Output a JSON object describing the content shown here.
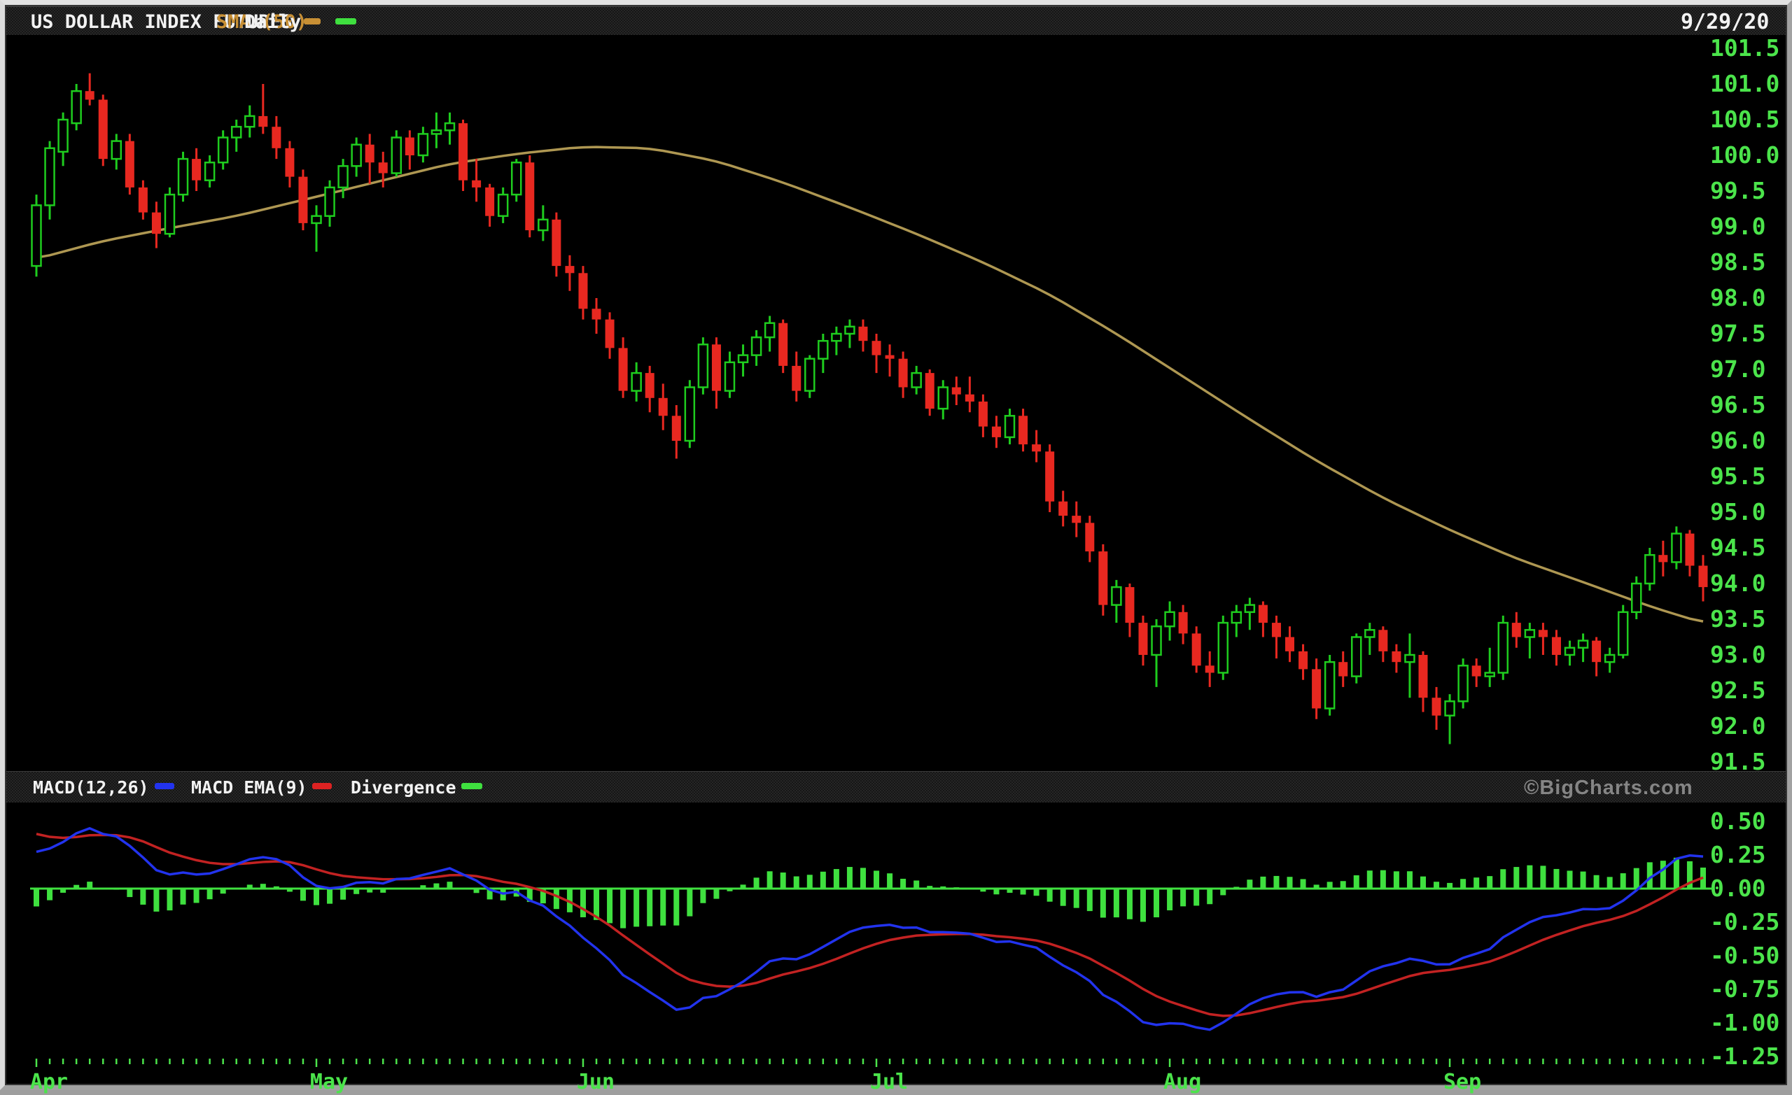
{
  "window": {
    "title": "US DOLLAR INDEX FUTURES",
    "overlay_indicator_label": "SMA (50)",
    "period_label": "Daily",
    "date": "9/29/20"
  },
  "watermark": "©BigCharts.com",
  "macd_legend": {
    "macd_label": "MACD(12,26)",
    "ema_label": "MACD EMA(9)",
    "divergence_label": "Divergence"
  },
  "colors": {
    "up": "#1ecc1e",
    "down": "#e82820",
    "ma": "#ae9752",
    "macd_line": "#2233ee",
    "signal_line": "#c22222",
    "histogram": "#3fe03f",
    "axis_text": "#4be44b",
    "title_text": "#f2f2f2",
    "overlay_text": "#c89035",
    "watermark_text": "#858585"
  },
  "chart_data": {
    "type": "candlestick",
    "title": "US DOLLAR INDEX FUTURES Daily with SMA(50) overlay and MACD(12,26,9) panel",
    "ohlc_format": [
      "open",
      "high",
      "low",
      "close"
    ],
    "y_axis": {
      "side": "right",
      "min": 91.5,
      "max": 101.5,
      "ticks": [
        "101.5",
        "101.0",
        "100.5",
        "100.0",
        "99.5",
        "99.0",
        "98.5",
        "98.0",
        "97.5",
        "97.0",
        "96.5",
        "96.0",
        "95.5",
        "95.0",
        "94.5",
        "94.0",
        "93.5",
        "93.0",
        "92.5",
        "92.0",
        "91.5"
      ]
    },
    "macd_axis": {
      "side": "right",
      "min": -1.25,
      "max": 0.5,
      "ticks": [
        "0.50",
        "0.25",
        "0.00",
        "-0.25",
        "-0.50",
        "-0.75",
        "-1.00",
        "-1.25"
      ]
    },
    "x_axis": {
      "months": [
        "Apr",
        "May",
        "Jun",
        "Jul",
        "Aug",
        "Sep"
      ],
      "month_start_index": [
        0,
        21,
        41,
        63,
        85,
        106
      ]
    },
    "layout": {
      "grid": false,
      "background": "black",
      "legend_position": "top-left of each pane"
    },
    "candles": [
      [
        98.45,
        99.45,
        98.3,
        99.3
      ],
      [
        99.3,
        100.2,
        99.1,
        100.1
      ],
      [
        100.05,
        100.6,
        99.85,
        100.5
      ],
      [
        100.45,
        101.0,
        100.35,
        100.9
      ],
      [
        100.9,
        101.15,
        100.7,
        100.78
      ],
      [
        100.78,
        100.85,
        99.85,
        99.95
      ],
      [
        99.95,
        100.3,
        99.8,
        100.2
      ],
      [
        100.2,
        100.3,
        99.45,
        99.55
      ],
      [
        99.55,
        99.65,
        99.1,
        99.2
      ],
      [
        99.2,
        99.35,
        98.7,
        98.9
      ],
      [
        98.9,
        99.55,
        98.85,
        99.45
      ],
      [
        99.45,
        100.05,
        99.35,
        99.95
      ],
      [
        99.95,
        100.1,
        99.5,
        99.65
      ],
      [
        99.65,
        100.0,
        99.55,
        99.9
      ],
      [
        99.9,
        100.35,
        99.8,
        100.25
      ],
      [
        100.25,
        100.5,
        100.05,
        100.4
      ],
      [
        100.4,
        100.7,
        100.25,
        100.55
      ],
      [
        100.55,
        101.0,
        100.3,
        100.4
      ],
      [
        100.4,
        100.55,
        99.95,
        100.1
      ],
      [
        100.1,
        100.2,
        99.55,
        99.7
      ],
      [
        99.7,
        99.8,
        98.95,
        99.05
      ],
      [
        99.05,
        99.3,
        98.65,
        99.15
      ],
      [
        99.15,
        99.65,
        99.0,
        99.55
      ],
      [
        99.55,
        99.95,
        99.4,
        99.85
      ],
      [
        99.85,
        100.25,
        99.7,
        100.15
      ],
      [
        100.15,
        100.3,
        99.6,
        99.9
      ],
      [
        99.9,
        100.05,
        99.55,
        99.75
      ],
      [
        99.75,
        100.35,
        99.7,
        100.25
      ],
      [
        100.25,
        100.35,
        99.8,
        100.0
      ],
      [
        100.0,
        100.4,
        99.9,
        100.3
      ],
      [
        100.3,
        100.6,
        100.1,
        100.35
      ],
      [
        100.35,
        100.6,
        100.15,
        100.45
      ],
      [
        100.45,
        100.5,
        99.5,
        99.65
      ],
      [
        99.65,
        99.95,
        99.35,
        99.55
      ],
      [
        99.55,
        99.6,
        99.0,
        99.15
      ],
      [
        99.15,
        99.55,
        99.05,
        99.45
      ],
      [
        99.45,
        99.95,
        99.35,
        99.9
      ],
      [
        99.9,
        100.0,
        98.85,
        98.95
      ],
      [
        98.95,
        99.3,
        98.8,
        99.1
      ],
      [
        99.1,
        99.2,
        98.3,
        98.45
      ],
      [
        98.45,
        98.6,
        98.1,
        98.35
      ],
      [
        98.35,
        98.45,
        97.7,
        97.85
      ],
      [
        97.85,
        98.0,
        97.5,
        97.7
      ],
      [
        97.7,
        97.8,
        97.15,
        97.3
      ],
      [
        97.3,
        97.45,
        96.6,
        96.7
      ],
      [
        96.7,
        97.1,
        96.55,
        96.95
      ],
      [
        96.95,
        97.05,
        96.4,
        96.6
      ],
      [
        96.6,
        96.8,
        96.15,
        96.35
      ],
      [
        96.35,
        96.5,
        95.75,
        96.0
      ],
      [
        96.0,
        96.85,
        95.9,
        96.75
      ],
      [
        96.75,
        97.45,
        96.65,
        97.35
      ],
      [
        97.35,
        97.45,
        96.45,
        96.7
      ],
      [
        96.7,
        97.25,
        96.6,
        97.1
      ],
      [
        97.1,
        97.35,
        96.9,
        97.2
      ],
      [
        97.2,
        97.55,
        97.05,
        97.45
      ],
      [
        97.45,
        97.75,
        97.25,
        97.65
      ],
      [
        97.65,
        97.7,
        96.95,
        97.05
      ],
      [
        97.05,
        97.25,
        96.55,
        96.7
      ],
      [
        96.7,
        97.2,
        96.6,
        97.15
      ],
      [
        97.15,
        97.5,
        96.95,
        97.4
      ],
      [
        97.4,
        97.6,
        97.2,
        97.5
      ],
      [
        97.5,
        97.7,
        97.3,
        97.6
      ],
      [
        97.6,
        97.7,
        97.25,
        97.4
      ],
      [
        97.4,
        97.5,
        96.95,
        97.2
      ],
      [
        97.2,
        97.35,
        96.9,
        97.15
      ],
      [
        97.15,
        97.25,
        96.6,
        96.75
      ],
      [
        96.75,
        97.05,
        96.65,
        96.95
      ],
      [
        96.95,
        97.0,
        96.35,
        96.45
      ],
      [
        96.45,
        96.85,
        96.3,
        96.75
      ],
      [
        96.75,
        96.9,
        96.5,
        96.65
      ],
      [
        96.65,
        96.9,
        96.4,
        96.55
      ],
      [
        96.55,
        96.65,
        96.05,
        96.2
      ],
      [
        96.2,
        96.35,
        95.9,
        96.05
      ],
      [
        96.05,
        96.45,
        95.95,
        96.35
      ],
      [
        96.35,
        96.45,
        95.85,
        95.95
      ],
      [
        95.95,
        96.15,
        95.7,
        95.85
      ],
      [
        95.85,
        95.95,
        95.0,
        95.15
      ],
      [
        95.15,
        95.3,
        94.8,
        94.95
      ],
      [
        94.95,
        95.15,
        94.65,
        94.85
      ],
      [
        94.85,
        94.95,
        94.3,
        94.45
      ],
      [
        94.45,
        94.55,
        93.55,
        93.7
      ],
      [
        93.7,
        94.05,
        93.45,
        93.95
      ],
      [
        93.95,
        94.0,
        93.25,
        93.45
      ],
      [
        93.45,
        93.55,
        92.85,
        93.0
      ],
      [
        93.0,
        93.5,
        92.55,
        93.4
      ],
      [
        93.4,
        93.75,
        93.2,
        93.6
      ],
      [
        93.6,
        93.7,
        93.15,
        93.3
      ],
      [
        93.3,
        93.4,
        92.75,
        92.85
      ],
      [
        92.85,
        93.05,
        92.55,
        92.75
      ],
      [
        92.75,
        93.55,
        92.65,
        93.45
      ],
      [
        93.45,
        93.7,
        93.25,
        93.6
      ],
      [
        93.6,
        93.8,
        93.35,
        93.7
      ],
      [
        93.7,
        93.75,
        93.25,
        93.45
      ],
      [
        93.45,
        93.55,
        92.95,
        93.25
      ],
      [
        93.25,
        93.4,
        92.9,
        93.05
      ],
      [
        93.05,
        93.15,
        92.65,
        92.8
      ],
      [
        92.8,
        92.95,
        92.1,
        92.25
      ],
      [
        92.25,
        93.0,
        92.15,
        92.9
      ],
      [
        92.9,
        93.05,
        92.55,
        92.7
      ],
      [
        92.7,
        93.3,
        92.6,
        93.25
      ],
      [
        93.25,
        93.45,
        93.0,
        93.35
      ],
      [
        93.35,
        93.4,
        92.9,
        93.05
      ],
      [
        93.05,
        93.15,
        92.75,
        92.9
      ],
      [
        92.9,
        93.3,
        92.4,
        93.0
      ],
      [
        93.0,
        93.05,
        92.2,
        92.4
      ],
      [
        92.4,
        92.55,
        91.95,
        92.15
      ],
      [
        92.15,
        92.45,
        91.75,
        92.35
      ],
      [
        92.35,
        92.95,
        92.25,
        92.85
      ],
      [
        92.85,
        92.95,
        92.55,
        92.7
      ],
      [
        92.7,
        93.1,
        92.55,
        92.75
      ],
      [
        92.75,
        93.55,
        92.65,
        93.45
      ],
      [
        93.45,
        93.6,
        93.1,
        93.25
      ],
      [
        93.25,
        93.45,
        92.95,
        93.35
      ],
      [
        93.35,
        93.45,
        93.0,
        93.25
      ],
      [
        93.25,
        93.35,
        92.85,
        93.0
      ],
      [
        93.0,
        93.2,
        92.85,
        93.1
      ],
      [
        93.1,
        93.3,
        92.9,
        93.2
      ],
      [
        93.2,
        93.25,
        92.7,
        92.9
      ],
      [
        92.9,
        93.1,
        92.75,
        93.0
      ],
      [
        93.0,
        93.7,
        92.95,
        93.6
      ],
      [
        93.6,
        94.1,
        93.5,
        94.0
      ],
      [
        94.0,
        94.5,
        93.9,
        94.4
      ],
      [
        94.4,
        94.6,
        94.1,
        94.3
      ],
      [
        94.3,
        94.8,
        94.2,
        94.7
      ],
      [
        94.7,
        94.75,
        94.1,
        94.25
      ],
      [
        94.25,
        94.4,
        93.75,
        93.95
      ]
    ],
    "sma50_anchors": [
      [
        0,
        98.55
      ],
      [
        5,
        98.8
      ],
      [
        10,
        98.98
      ],
      [
        15,
        99.15
      ],
      [
        21,
        99.42
      ],
      [
        26,
        99.65
      ],
      [
        31,
        99.88
      ],
      [
        36,
        100.02
      ],
      [
        41,
        100.12
      ],
      [
        46,
        100.1
      ],
      [
        51,
        99.92
      ],
      [
        56,
        99.62
      ],
      [
        61,
        99.27
      ],
      [
        66,
        98.9
      ],
      [
        71,
        98.5
      ],
      [
        76,
        98.05
      ],
      [
        81,
        97.5
      ],
      [
        86,
        96.9
      ],
      [
        91,
        96.3
      ],
      [
        96,
        95.72
      ],
      [
        101,
        95.2
      ],
      [
        106,
        94.75
      ],
      [
        111,
        94.35
      ],
      [
        116,
        94.02
      ],
      [
        121,
        93.68
      ],
      [
        125,
        93.45
      ]
    ],
    "macd": {
      "fast": 12,
      "slow": 26,
      "signal": 9,
      "seed": {
        "ema12": 99.58,
        "ema26": 99.26,
        "signal": 0.44
      }
    }
  }
}
